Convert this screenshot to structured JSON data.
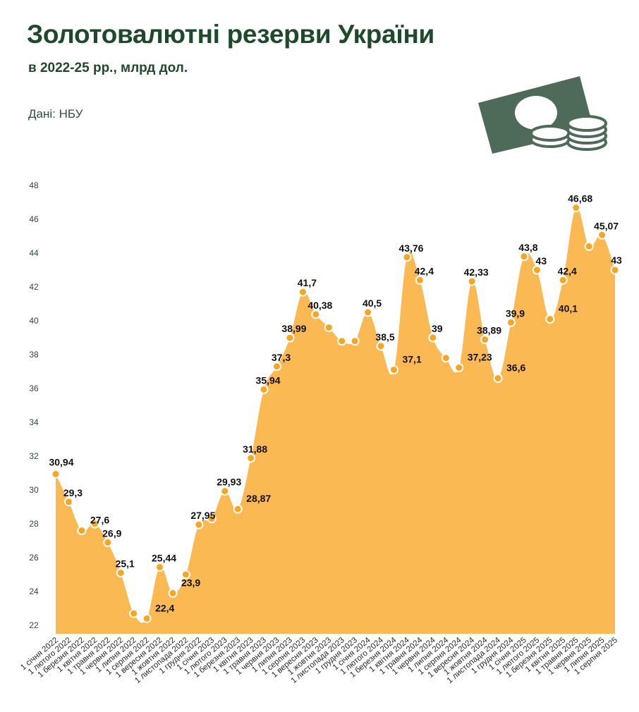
{
  "header": {
    "title": "Золотовалютні резерви України",
    "subtitle": "в 2022-25 рр., млрд дол.",
    "source": "Дані: НБУ"
  },
  "icon": {
    "name": "money-icon",
    "color": "#4e6a58"
  },
  "colors": {
    "area": "#fbb954",
    "point": "#f6a623",
    "point_stroke": "#ffffff",
    "text": "#1e4a2b"
  },
  "chart_data": {
    "type": "area",
    "title": "Золотовалютні резерви України",
    "subtitle": "в 2022-25 рр., млрд дол.",
    "ylim": [
      22,
      48
    ],
    "yticks": [
      22,
      24,
      26,
      28,
      30,
      32,
      34,
      36,
      38,
      40,
      42,
      44,
      46,
      48
    ],
    "grid": false,
    "categories": [
      "1 січня 2022",
      "1 лютого 2022",
      "1 березня 2022",
      "1 квітня 2022",
      "1 травня 2022",
      "1 червня 2022",
      "1 липня 2022",
      "1 серпня 2022",
      "1 вересня 2022",
      "1 жовтня 2022",
      "1 листопада 2022",
      "1 грудня 2022",
      "1 січня 2023",
      "1 лютого 2023",
      "1 березня 2023",
      "1 квітня 2023",
      "1 травня 2023",
      "1 червня 2023",
      "1 липня 2023",
      "1 серпня 2023",
      "1 вересня 2023",
      "1 жовтня 2023",
      "1 листопада 2023",
      "1 грудня 2023",
      "1 січня 2024",
      "1 лютого 2024",
      "1 березня 2024",
      "1 квітня 2024",
      "1 травня 2024",
      "1 червня 2024",
      "1 липня 2024",
      "1 серпня 2024",
      "1 вересня 2024",
      "1 жовтня 2024",
      "1 листопада 2024",
      "1 грудня 2024",
      "1 січня 2025",
      "1 лютого 2025",
      "1 березня 2025",
      "1 квітня 2025",
      "1 травня 2025",
      "1 червня 2025",
      "1 липня 2025",
      "1 серпня 2025"
    ],
    "values": [
      30.94,
      29.3,
      27.6,
      28,
      26.9,
      25.1,
      22.7,
      22.4,
      25.44,
      23.9,
      25,
      27.95,
      28.3,
      29.93,
      28.87,
      31.88,
      35.94,
      37.3,
      38.99,
      41.7,
      40.38,
      39.6,
      38.8,
      38.8,
      40.5,
      38.5,
      37.1,
      43.76,
      42.4,
      39,
      37.8,
      37.23,
      42.33,
      38.89,
      36.6,
      39.9,
      43.8,
      43,
      40.1,
      42.4,
      46.68,
      44.4,
      45.07,
      43
    ],
    "data_labels": [
      "30,94",
      "29,3",
      "27,6",
      "",
      "26,9",
      "25,1",
      "",
      "22,4",
      "25,44",
      "23,9",
      "",
      "27,95",
      "",
      "29,93",
      "28,87",
      "31,88",
      "35,94",
      "37,3",
      "38,99",
      "41,7",
      "40,38",
      "",
      "",
      "",
      "40,5",
      "38,5",
      "37,1",
      "43,76",
      "42,4",
      "39",
      "",
      "37,23",
      "42,33",
      "38,89",
      "36,6",
      "39,9",
      "43,8",
      "43",
      "40,1",
      "42,4",
      "46,68",
      "",
      "45,07",
      "43"
    ]
  }
}
